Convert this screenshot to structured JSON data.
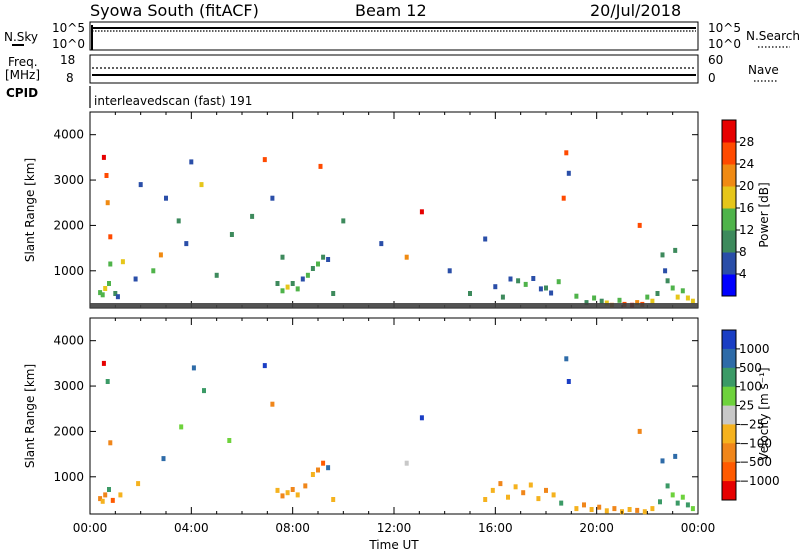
{
  "header": {
    "station": "Syowa South (fitACF)",
    "beam": "Beam 12",
    "date": "20/Jul/2018"
  },
  "nsky_panel": {
    "label": "N.Sky",
    "right_label": "N.Search",
    "left_ticks": [
      "10^5",
      "10^0"
    ],
    "right_ticks": [
      "10^5",
      "10^0"
    ]
  },
  "freq_panel": {
    "label": "Freq.",
    "unit": "[MHz]",
    "right_label": "Nave",
    "left_ticks": [
      "18",
      "8"
    ],
    "right_ticks": [
      "60",
      "0"
    ]
  },
  "cpid": {
    "label": "CPID",
    "text": "interleavedscan (fast) 191"
  },
  "chart_data": [
    {
      "type": "heatmap",
      "name": "power",
      "ylabel": "Slant Range [km]",
      "ylim": [
        180,
        4500
      ],
      "yticks": [
        1000,
        2000,
        3000,
        4000
      ],
      "xlim_hours": [
        0,
        24
      ],
      "colorbar": {
        "label": "Power [dB]",
        "ticks": [
          "4",
          "8",
          "12",
          "16",
          "20",
          "24",
          "28"
        ],
        "colors": [
          "#0000ff",
          "#2a4ea8",
          "#3d8a5c",
          "#4fb34a",
          "#e6c61a",
          "#f08a12",
          "#ff4a00",
          "#e60000"
        ]
      },
      "points": [
        [
          0.4,
          520,
          3
        ],
        [
          0.5,
          470,
          3
        ],
        [
          0.6,
          610,
          4
        ],
        [
          0.75,
          720,
          3
        ],
        [
          0.8,
          1150,
          3
        ],
        [
          0.55,
          3500,
          7
        ],
        [
          0.65,
          3100,
          6
        ],
        [
          0.7,
          2500,
          5
        ],
        [
          0.8,
          1750,
          6
        ],
        [
          1.0,
          500,
          2
        ],
        [
          1.1,
          430,
          1
        ],
        [
          1.3,
          1200,
          4
        ],
        [
          1.8,
          820,
          1
        ],
        [
          2.0,
          2900,
          1
        ],
        [
          2.5,
          1000,
          3
        ],
        [
          2.8,
          1350,
          5
        ],
        [
          3.0,
          2600,
          1
        ],
        [
          3.5,
          2100,
          2
        ],
        [
          3.8,
          1600,
          1
        ],
        [
          4.0,
          3400,
          1
        ],
        [
          4.4,
          2900,
          4
        ],
        [
          5.0,
          900,
          2
        ],
        [
          5.6,
          1800,
          2
        ],
        [
          6.4,
          2200,
          2
        ],
        [
          6.9,
          3450,
          6
        ],
        [
          7.2,
          2600,
          1
        ],
        [
          7.6,
          1300,
          2
        ],
        [
          7.4,
          720,
          2
        ],
        [
          7.6,
          560,
          3
        ],
        [
          7.8,
          640,
          4
        ],
        [
          8.0,
          720,
          2
        ],
        [
          8.2,
          600,
          3
        ],
        [
          8.4,
          820,
          1
        ],
        [
          8.6,
          900,
          3
        ],
        [
          8.8,
          1050,
          2
        ],
        [
          9.0,
          1150,
          3
        ],
        [
          9.2,
          1300,
          2
        ],
        [
          9.4,
          1250,
          1
        ],
        [
          9.1,
          3300,
          6
        ],
        [
          9.6,
          500,
          2
        ],
        [
          10.0,
          2100,
          2
        ],
        [
          11.5,
          1600,
          1
        ],
        [
          12.5,
          1300,
          5
        ],
        [
          13.1,
          2300,
          7
        ],
        [
          14.2,
          1000,
          1
        ],
        [
          15.0,
          500,
          2
        ],
        [
          15.6,
          1700,
          1
        ],
        [
          16.0,
          650,
          1
        ],
        [
          16.3,
          420,
          2
        ],
        [
          16.6,
          820,
          1
        ],
        [
          16.9,
          780,
          2
        ],
        [
          17.2,
          700,
          3
        ],
        [
          17.5,
          830,
          1
        ],
        [
          17.8,
          600,
          1
        ],
        [
          18.0,
          620,
          2
        ],
        [
          18.2,
          510,
          1
        ],
        [
          18.5,
          760,
          3
        ],
        [
          18.7,
          2600,
          6
        ],
        [
          18.8,
          3600,
          6
        ],
        [
          18.9,
          3150,
          1
        ],
        [
          19.2,
          440,
          3
        ],
        [
          19.6,
          300,
          2
        ],
        [
          19.9,
          400,
          3
        ],
        [
          20.2,
          330,
          2
        ],
        [
          20.4,
          290,
          4
        ],
        [
          20.6,
          240,
          5
        ],
        [
          20.9,
          350,
          3
        ],
        [
          21.1,
          260,
          6
        ],
        [
          21.4,
          240,
          7
        ],
        [
          21.6,
          300,
          5
        ],
        [
          21.8,
          260,
          6
        ],
        [
          22.0,
          420,
          3
        ],
        [
          22.2,
          330,
          4
        ],
        [
          22.4,
          500,
          2
        ],
        [
          22.6,
          1350,
          2
        ],
        [
          22.7,
          1000,
          1
        ],
        [
          22.8,
          780,
          2
        ],
        [
          23.0,
          620,
          3
        ],
        [
          23.2,
          420,
          4
        ],
        [
          23.4,
          560,
          3
        ],
        [
          23.6,
          400,
          4
        ],
        [
          23.8,
          330,
          4
        ],
        [
          21.7,
          2000,
          6
        ],
        [
          23.1,
          1450,
          2
        ]
      ]
    },
    {
      "type": "heatmap",
      "name": "velocity",
      "ylabel": "Slant Range [km]",
      "ylim": [
        180,
        4500
      ],
      "yticks": [
        1000,
        2000,
        3000,
        4000
      ],
      "xlim_hours": [
        0,
        24
      ],
      "xticks": [
        "00:00",
        "04:00",
        "08:00",
        "12:00",
        "16:00",
        "20:00",
        "00:00"
      ],
      "xlabel": "Time UT",
      "colorbar": {
        "label": "Velocity [m s⁻¹]",
        "ticks": [
          "1000",
          "500",
          "100",
          "25",
          "−25",
          "−100",
          "−500",
          "−1000"
        ],
        "colors": [
          "#1a3ec4",
          "#2e6ba8",
          "#3b9a66",
          "#6ed23c",
          "#c8c8c8",
          "#f5b21e",
          "#f0861a",
          "#ff5a00",
          "#e60000"
        ]
      },
      "points": [
        [
          0.4,
          520,
          6
        ],
        [
          0.5,
          460,
          5
        ],
        [
          0.6,
          600,
          6
        ],
        [
          0.75,
          720,
          2
        ],
        [
          0.9,
          480,
          7
        ],
        [
          0.55,
          3500,
          8
        ],
        [
          0.7,
          3100,
          2
        ],
        [
          0.8,
          1750,
          6
        ],
        [
          1.2,
          600,
          5
        ],
        [
          1.9,
          850,
          5
        ],
        [
          2.9,
          1400,
          1
        ],
        [
          3.6,
          2100,
          3
        ],
        [
          4.1,
          3400,
          1
        ],
        [
          4.5,
          2900,
          2
        ],
        [
          5.5,
          1800,
          3
        ],
        [
          6.9,
          3450,
          0
        ],
        [
          7.2,
          2600,
          6
        ],
        [
          7.4,
          700,
          5
        ],
        [
          7.6,
          580,
          6
        ],
        [
          7.8,
          650,
          5
        ],
        [
          8.0,
          720,
          6
        ],
        [
          8.2,
          600,
          5
        ],
        [
          8.5,
          800,
          6
        ],
        [
          8.8,
          1050,
          5
        ],
        [
          9.0,
          1150,
          6
        ],
        [
          9.2,
          1300,
          7
        ],
        [
          9.4,
          1200,
          1
        ],
        [
          9.6,
          500,
          5
        ],
        [
          12.5,
          1300,
          4
        ],
        [
          13.1,
          2300,
          0
        ],
        [
          15.6,
          500,
          5
        ],
        [
          15.9,
          700,
          5
        ],
        [
          16.2,
          850,
          6
        ],
        [
          16.5,
          550,
          5
        ],
        [
          16.8,
          780,
          5
        ],
        [
          17.1,
          650,
          6
        ],
        [
          17.4,
          820,
          5
        ],
        [
          17.7,
          520,
          5
        ],
        [
          18.0,
          700,
          6
        ],
        [
          18.3,
          600,
          5
        ],
        [
          18.6,
          420,
          2
        ],
        [
          18.8,
          3600,
          1
        ],
        [
          18.9,
          3100,
          0
        ],
        [
          19.2,
          300,
          5
        ],
        [
          19.5,
          380,
          6
        ],
        [
          19.8,
          280,
          5
        ],
        [
          20.1,
          330,
          6
        ],
        [
          20.4,
          250,
          5
        ],
        [
          20.7,
          300,
          6
        ],
        [
          21.0,
          230,
          5
        ],
        [
          21.3,
          280,
          5
        ],
        [
          21.6,
          260,
          6
        ],
        [
          21.9,
          230,
          5
        ],
        [
          22.2,
          300,
          5
        ],
        [
          22.5,
          450,
          2
        ],
        [
          22.6,
          1350,
          1
        ],
        [
          22.8,
          800,
          2
        ],
        [
          23.0,
          600,
          3
        ],
        [
          23.2,
          420,
          2
        ],
        [
          23.4,
          550,
          3
        ],
        [
          23.6,
          380,
          2
        ],
        [
          23.8,
          300,
          3
        ],
        [
          21.7,
          2000,
          6
        ],
        [
          23.1,
          1450,
          1
        ]
      ]
    }
  ]
}
